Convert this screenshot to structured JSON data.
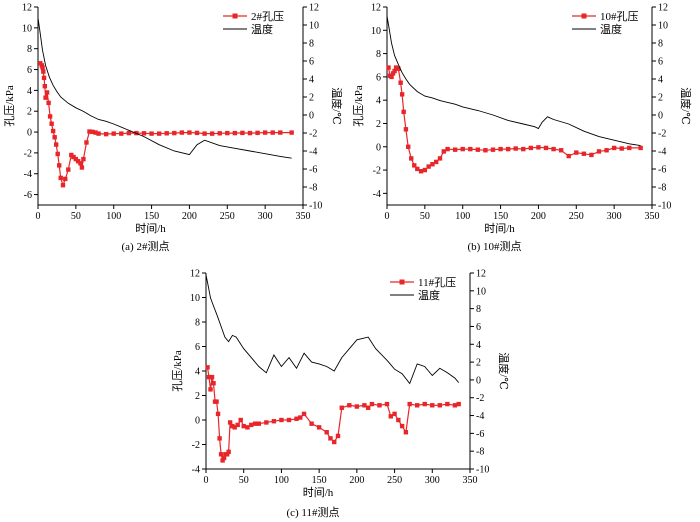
{
  "chart_data": [
    {
      "type": "line",
      "caption": "(a) 2#测点",
      "xlabel": "时间/h",
      "ylabel": "孔压/kPa",
      "y2label": "温度/℃",
      "xlim": [
        0,
        350
      ],
      "ylim": [
        -7,
        12
      ],
      "y2lim": [
        -10,
        12
      ],
      "xticks": [
        0,
        50,
        100,
        150,
        200,
        250,
        300,
        350
      ],
      "yticks": [
        -6,
        -4,
        -2,
        0,
        2,
        4,
        6,
        8,
        10,
        12
      ],
      "y2ticks": [
        -10,
        -8,
        -6,
        -4,
        -2,
        0,
        2,
        4,
        6,
        8,
        10,
        12
      ],
      "legend_position": "top-right",
      "grid": false,
      "series": [
        {
          "name": "2#孔压",
          "axis": "left",
          "color": "#e8262a",
          "marker": "square",
          "x": [
            3,
            5,
            6,
            7,
            8,
            9,
            10,
            12,
            14,
            16,
            18,
            20,
            22,
            24,
            26,
            28,
            30,
            33,
            36,
            40,
            44,
            47,
            50,
            53,
            56,
            58,
            60,
            64,
            68,
            72,
            76,
            80,
            90,
            100,
            110,
            120,
            130,
            140,
            150,
            160,
            170,
            180,
            190,
            200,
            210,
            220,
            230,
            240,
            250,
            260,
            270,
            280,
            290,
            300,
            310,
            320,
            335
          ],
          "y": [
            6.6,
            6.4,
            6.2,
            5.8,
            5.2,
            4.4,
            3.3,
            3.8,
            2.8,
            1.5,
            0.8,
            0.1,
            -0.5,
            -1.2,
            -2.1,
            -3.2,
            -4.4,
            -5.1,
            -4.5,
            -3.6,
            -2.2,
            -2.4,
            -2.6,
            -2.8,
            -3.0,
            -3.4,
            -2.6,
            -1.0,
            0.05,
            0.02,
            -0.05,
            -0.15,
            -0.2,
            -0.15,
            -0.15,
            -0.1,
            -0.1,
            -0.12,
            -0.15,
            -0.15,
            -0.12,
            -0.1,
            -0.05,
            -0.05,
            -0.08,
            -0.15,
            -0.15,
            -0.12,
            -0.1,
            -0.1,
            -0.08,
            -0.1,
            -0.08,
            -0.05,
            -0.05,
            -0.05,
            -0.05
          ]
        },
        {
          "name": "温度",
          "axis": "right",
          "color": "#000000",
          "marker": "none",
          "x": [
            0,
            3,
            6,
            10,
            15,
            20,
            25,
            30,
            40,
            50,
            60,
            70,
            80,
            90,
            100,
            120,
            140,
            160,
            180,
            200,
            210,
            220,
            240,
            260,
            280,
            300,
            320,
            335
          ],
          "y": [
            10.8,
            9.0,
            7.2,
            5.5,
            4.2,
            3.3,
            2.6,
            2.0,
            1.3,
            0.8,
            0.4,
            -0.1,
            -0.5,
            -0.7,
            -1.0,
            -1.7,
            -2.4,
            -3.3,
            -4.0,
            -4.4,
            -3.3,
            -2.8,
            -3.4,
            -3.7,
            -4.0,
            -4.3,
            -4.6,
            -4.8
          ]
        }
      ]
    },
    {
      "type": "line",
      "caption": "(b) 10#测点",
      "xlabel": "时间/h",
      "ylabel": "孔压/kPa",
      "y2label": "温度/℃",
      "xlim": [
        0,
        350
      ],
      "ylim": [
        -5,
        12
      ],
      "y2lim": [
        -10,
        12
      ],
      "xticks": [
        0,
        50,
        100,
        150,
        200,
        250,
        300,
        350
      ],
      "yticks": [
        -4,
        -2,
        0,
        2,
        4,
        6,
        8,
        10,
        12
      ],
      "y2ticks": [
        -10,
        -8,
        -6,
        -4,
        -2,
        0,
        2,
        4,
        6,
        8,
        10,
        12
      ],
      "legend_position": "top-right",
      "grid": false,
      "series": [
        {
          "name": "10#孔压",
          "axis": "left",
          "color": "#e8262a",
          "marker": "square",
          "x": [
            2,
            4,
            6,
            8,
            10,
            12,
            15,
            18,
            20,
            22,
            25,
            28,
            32,
            36,
            40,
            45,
            50,
            55,
            60,
            65,
            70,
            75,
            80,
            90,
            100,
            110,
            120,
            130,
            140,
            150,
            160,
            170,
            180,
            190,
            200,
            210,
            220,
            230,
            240,
            250,
            260,
            270,
            280,
            290,
            300,
            310,
            320,
            335
          ],
          "y": [
            6.8,
            6.1,
            6.0,
            6.3,
            6.5,
            6.8,
            6.7,
            5.5,
            4.5,
            3.0,
            1.5,
            0.0,
            -1.0,
            -1.6,
            -1.9,
            -2.1,
            -2.0,
            -1.7,
            -1.5,
            -1.3,
            -1.0,
            -0.4,
            -0.2,
            -0.25,
            -0.2,
            -0.2,
            -0.25,
            -0.3,
            -0.25,
            -0.2,
            -0.2,
            -0.15,
            -0.2,
            -0.1,
            -0.05,
            -0.1,
            -0.2,
            -0.3,
            -0.8,
            -0.5,
            -0.6,
            -0.7,
            -0.4,
            -0.3,
            -0.1,
            -0.15,
            -0.1,
            -0.1
          ]
        },
        {
          "name": "温度",
          "axis": "right",
          "color": "#000000",
          "marker": "none",
          "x": [
            0,
            3,
            6,
            10,
            15,
            20,
            25,
            30,
            40,
            50,
            60,
            70,
            80,
            90,
            100,
            120,
            140,
            160,
            180,
            195,
            200,
            205,
            212,
            220,
            240,
            260,
            280,
            300,
            320,
            335
          ],
          "y": [
            11.0,
            9.5,
            8.0,
            6.6,
            5.6,
            4.7,
            4.0,
            3.4,
            2.6,
            2.1,
            1.9,
            1.6,
            1.4,
            1.2,
            0.9,
            0.5,
            0.0,
            -0.6,
            -1.0,
            -1.3,
            -1.5,
            -0.8,
            -0.2,
            -0.5,
            -1.0,
            -1.8,
            -2.4,
            -2.8,
            -3.2,
            -3.4
          ]
        }
      ]
    },
    {
      "type": "line",
      "caption": "(c) 11#测点",
      "xlabel": "时间/h",
      "ylabel": "孔压/kPa",
      "y2label": "温度/℃",
      "xlim": [
        0,
        350
      ],
      "ylim": [
        -4,
        12
      ],
      "y2lim": [
        -10,
        12
      ],
      "xticks": [
        0,
        50,
        100,
        150,
        200,
        250,
        300,
        350
      ],
      "yticks": [
        -4,
        -2,
        0,
        2,
        4,
        6,
        8,
        10,
        12
      ],
      "y2ticks": [
        -10,
        -8,
        -6,
        -4,
        -2,
        0,
        2,
        4,
        6,
        8,
        10,
        12
      ],
      "legend_position": "top-right",
      "grid": false,
      "series": [
        {
          "name": "11#孔压",
          "axis": "left",
          "color": "#e8262a",
          "marker": "square",
          "x": [
            2,
            4,
            6,
            8,
            10,
            12,
            14,
            16,
            18,
            20,
            22,
            24,
            26,
            28,
            30,
            32,
            35,
            38,
            42,
            46,
            50,
            55,
            60,
            65,
            70,
            80,
            90,
            100,
            110,
            120,
            125,
            130,
            140,
            150,
            160,
            165,
            170,
            175,
            180,
            190,
            200,
            210,
            215,
            220,
            230,
            240,
            245,
            250,
            255,
            260,
            265,
            270,
            280,
            290,
            300,
            310,
            320,
            330,
            335
          ],
          "y": [
            4.3,
            3.5,
            2.5,
            3.5,
            3.0,
            1.5,
            1.5,
            0.5,
            -1.5,
            -2.8,
            -3.3,
            -3.1,
            -2.8,
            -2.8,
            -2.6,
            -0.2,
            -0.5,
            -0.6,
            -0.4,
            0.0,
            -0.5,
            -0.6,
            -0.4,
            -0.3,
            -0.3,
            -0.2,
            -0.1,
            0.0,
            0.0,
            0.1,
            0.2,
            0.5,
            -0.3,
            -0.6,
            -1.0,
            -1.5,
            -1.8,
            -1.3,
            1.0,
            1.2,
            1.1,
            1.2,
            1.0,
            1.3,
            1.2,
            1.3,
            0.3,
            0.5,
            0.0,
            -0.5,
            -1.0,
            1.3,
            1.2,
            1.3,
            1.2,
            1.2,
            1.3,
            1.2,
            1.3
          ]
        },
        {
          "name": "温度",
          "axis": "right",
          "color": "#000000",
          "marker": "none",
          "x": [
            0,
            3,
            6,
            10,
            15,
            20,
            25,
            30,
            35,
            40,
            50,
            60,
            70,
            80,
            90,
            100,
            110,
            120,
            130,
            140,
            150,
            160,
            170,
            180,
            200,
            215,
            225,
            240,
            250,
            260,
            270,
            280,
            290,
            300,
            310,
            320,
            330,
            335
          ],
          "y": [
            11.8,
            10.5,
            9.2,
            8.3,
            7.2,
            6.0,
            4.8,
            4.3,
            5.0,
            4.8,
            3.5,
            2.5,
            1.5,
            0.8,
            2.8,
            1.5,
            2.5,
            1.3,
            3.0,
            2.0,
            1.8,
            1.5,
            1.0,
            2.5,
            4.5,
            4.8,
            3.5,
            2.2,
            1.2,
            0.7,
            -0.4,
            1.8,
            1.5,
            0.5,
            1.3,
            0.8,
            0.2,
            -0.3
          ]
        }
      ]
    }
  ]
}
